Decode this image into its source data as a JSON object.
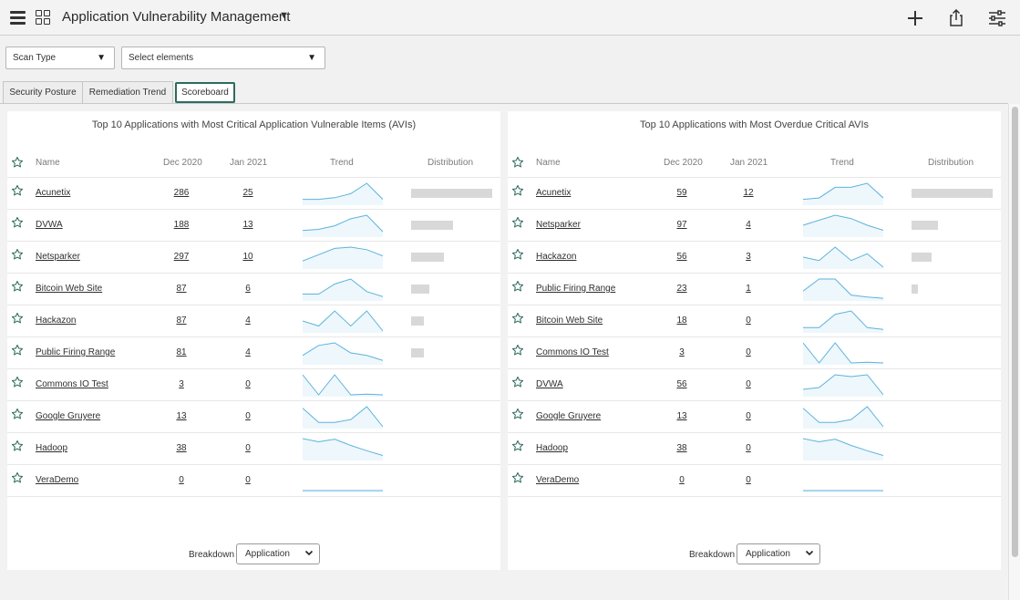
{
  "header": {
    "title": "Application Vulnerability Management",
    "icons": [
      "menu-icon",
      "app-grid-icon",
      "plus-icon",
      "share-icon",
      "filter-settings-icon"
    ]
  },
  "filters": {
    "scan_type": "Scan Type",
    "select_elements": "Select elements"
  },
  "tabs": [
    {
      "label": "Security Posture",
      "active": false
    },
    {
      "label": "Remediation Trend",
      "active": false
    },
    {
      "label": "Scoreboard",
      "active": true
    }
  ],
  "panels": [
    {
      "title": "Top 10 Applications with Most Critical Application Vulnerable Items (AVIs)",
      "columns": {
        "name": "Name",
        "m1": "Dec 2020",
        "m2": "Jan 2021",
        "trend": "Trend",
        "distribution": "Distribution"
      },
      "rows": [
        {
          "name": "Acunetix",
          "dec": "286",
          "jan": "25",
          "trend": [
            5,
            5,
            7,
            12,
            25,
            5
          ],
          "distribution": 1.0
        },
        {
          "name": "DVWA",
          "dec": "188",
          "jan": "13",
          "trend": [
            4,
            5,
            8,
            14,
            17,
            3
          ],
          "distribution": 0.52
        },
        {
          "name": "Netsparker",
          "dec": "297",
          "jan": "10",
          "trend": [
            5,
            10,
            15,
            16,
            14,
            9
          ],
          "distribution": 0.4
        },
        {
          "name": "Bitcoin Web Site",
          "dec": "87",
          "jan": "6",
          "trend": [
            2,
            2,
            6,
            8,
            3,
            1
          ],
          "distribution": 0.23
        },
        {
          "name": "Hackazon",
          "dec": "87",
          "jan": "4",
          "trend": [
            2,
            1,
            4,
            1,
            4,
            0
          ],
          "distribution": 0.16
        },
        {
          "name": "Public Firing Range",
          "dec": "81",
          "jan": "4",
          "trend": [
            3,
            7,
            8,
            4,
            3,
            1
          ],
          "distribution": 0.16
        },
        {
          "name": "Commons IO Test",
          "dec": "3",
          "jan": "0",
          "trend": [
            3,
            0,
            3,
            0,
            0.1,
            0
          ],
          "distribution": 0
        },
        {
          "name": "Google Gruyere",
          "dec": "13",
          "jan": "0",
          "trend": [
            13,
            3,
            3,
            5,
            14,
            0
          ],
          "distribution": 0
        },
        {
          "name": "Hadoop",
          "dec": "38",
          "jan": "0",
          "trend": [
            38,
            32,
            37,
            25,
            15,
            6
          ],
          "distribution": 0
        },
        {
          "name": "VeraDemo",
          "dec": "0",
          "jan": "0",
          "trend": [
            0,
            0,
            0,
            0,
            0,
            0
          ],
          "distribution": 0
        }
      ],
      "breakdown_label": "Breakdown",
      "breakdown_value": "Application"
    },
    {
      "title": "Top 10 Applications with Most Overdue Critical AVIs",
      "columns": {
        "name": "Name",
        "m1": "Dec 2020",
        "m2": "Jan 2021",
        "trend": "Trend",
        "distribution": "Distribution"
      },
      "rows": [
        {
          "name": "Acunetix",
          "dec": "59",
          "jan": "12",
          "trend": [
            3,
            4,
            12,
            12,
            15,
            4
          ],
          "distribution": 1.0
        },
        {
          "name": "Netsparker",
          "dec": "97",
          "jan": "4",
          "trend": [
            6,
            9,
            12,
            10,
            6,
            3
          ],
          "distribution": 0.33
        },
        {
          "name": "Hackazon",
          "dec": "56",
          "jan": "3",
          "trend": [
            3,
            2,
            6,
            2,
            4,
            0
          ],
          "distribution": 0.25
        },
        {
          "name": "Public Firing Range",
          "dec": "23",
          "jan": "1",
          "trend": [
            2,
            5,
            5,
            1,
            0.5,
            0.2
          ],
          "distribution": 0.08
        },
        {
          "name": "Bitcoin Web Site",
          "dec": "18",
          "jan": "0",
          "trend": [
            1,
            1,
            5,
            6,
            1,
            0.5
          ],
          "distribution": 0
        },
        {
          "name": "Commons IO Test",
          "dec": "3",
          "jan": "0",
          "trend": [
            3,
            0,
            3,
            0,
            0.1,
            0
          ],
          "distribution": 0
        },
        {
          "name": "DVWA",
          "dec": "56",
          "jan": "0",
          "trend": [
            3,
            4,
            11,
            10,
            11,
            0
          ],
          "distribution": 0
        },
        {
          "name": "Google Gruyere",
          "dec": "13",
          "jan": "0",
          "trend": [
            13,
            3,
            3,
            5,
            14,
            0
          ],
          "distribution": 0
        },
        {
          "name": "Hadoop",
          "dec": "38",
          "jan": "0",
          "trend": [
            38,
            32,
            37,
            25,
            15,
            6
          ],
          "distribution": 0
        },
        {
          "name": "VeraDemo",
          "dec": "0",
          "jan": "0",
          "trend": [
            0,
            0,
            0,
            0,
            0,
            0
          ],
          "distribution": 0
        }
      ],
      "breakdown_label": "Breakdown",
      "breakdown_value": "Application"
    }
  ],
  "colors": {
    "accent": "#2d6b5f",
    "sparkline": "#5bb3dc",
    "distribution_bar": "#d8d8d8"
  }
}
